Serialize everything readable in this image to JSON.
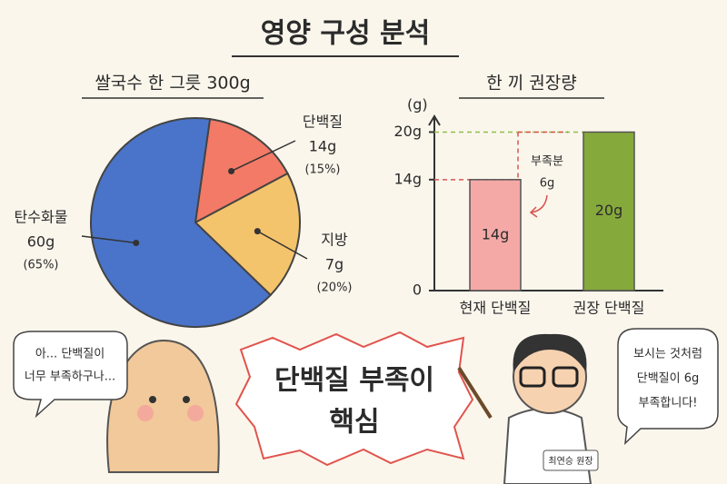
{
  "title": "영양 구성 분석",
  "chart_data": [
    {
      "type": "pie",
      "title": "쌀국수 한 그릇 300g",
      "categories": [
        "탄수화물",
        "단백질",
        "지방"
      ],
      "values": [
        65,
        15,
        20
      ],
      "value_labels": [
        "(65%)",
        "(15%)",
        "(20%)"
      ],
      "amount_labels": [
        "60g",
        "14g",
        "7g"
      ],
      "colors": [
        "#4a74c9",
        "#f27a66",
        "#f4c46c"
      ]
    },
    {
      "type": "bar",
      "title": "한 끼 권장량",
      "y_label": "(g)",
      "categories": [
        "현재 단백질",
        "권장 단백질"
      ],
      "values": [
        14,
        20
      ],
      "value_labels": [
        "14g",
        "20g"
      ],
      "colors": [
        "#f4a9a6",
        "#86a93c"
      ],
      "ylim": [
        0,
        22
      ],
      "yticks": [
        0,
        {
          "value": 14,
          "label": "14g"
        },
        {
          "value": 20,
          "label": "20g"
        }
      ],
      "annotation": [
        "부족분",
        "6g"
      ]
    }
  ],
  "illustration": {
    "patient_bubble": [
      "아... 단백질이",
      "너무 부족하구나..."
    ],
    "headline": [
      "단백질 부족이",
      "핵심"
    ],
    "doctor_bubble": [
      "보시는 것처럼",
      "단백질이 6g",
      "부족합니다!"
    ],
    "doctor_badge": "최연승 원장"
  }
}
